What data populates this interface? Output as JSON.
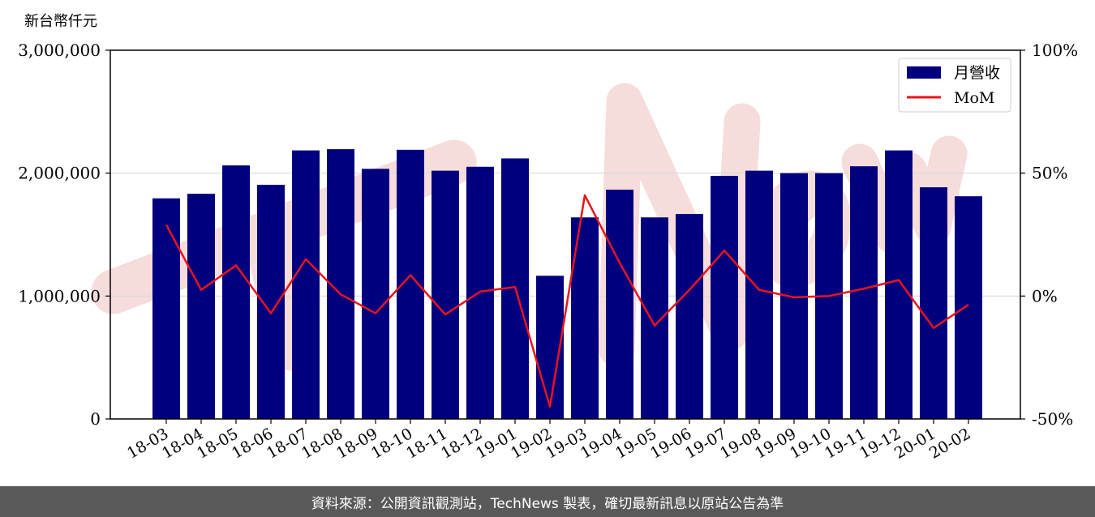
{
  "unit_label": "新台幣仟元",
  "footer_text": "資料來源：公開資訊觀測站，TechNews 製表，確切最新訊息以原站公告為準",
  "colors": {
    "bar": "#00007f",
    "line": "#e8141b",
    "grid": "#d9d9d9",
    "watermark": "#f7dcdc",
    "footer_bg": "#595959"
  },
  "chart_data": {
    "type": "bar",
    "categories": [
      "18-03",
      "18-04",
      "18-05",
      "18-06",
      "18-07",
      "18-08",
      "18-09",
      "18-10",
      "18-11",
      "18-12",
      "19-01",
      "19-02",
      "19-03",
      "19-04",
      "19-05",
      "19-06",
      "19-07",
      "19-08",
      "19-09",
      "19-10",
      "19-11",
      "19-12",
      "20-01",
      "20-02"
    ],
    "series": [
      {
        "name": "月營收",
        "axis": "left",
        "type": "bar",
        "values": [
          1795000,
          1832000,
          2063000,
          1905000,
          2185000,
          2195000,
          2035000,
          2190000,
          2020000,
          2052000,
          2120000,
          1165000,
          1640000,
          1865000,
          1640000,
          1668000,
          1978000,
          2020000,
          2000000,
          2000000,
          2056000,
          2185000,
          1885000,
          1812000
        ]
      },
      {
        "name": "MoM",
        "axis": "right",
        "type": "line",
        "values": [
          29,
          2.5,
          12.5,
          -7,
          15,
          0.7,
          -7,
          8.5,
          -7.5,
          1.8,
          3.7,
          -45,
          41,
          13.5,
          -12,
          2.5,
          18.5,
          2.5,
          -0.5,
          0,
          3,
          6.5,
          -13,
          -3.5
        ]
      }
    ],
    "y_left": {
      "lim": [
        0,
        3000000
      ],
      "ticks": [
        "0",
        "1,000,000",
        "2,000,000",
        "3,000,000"
      ]
    },
    "y_right": {
      "lim": [
        -50,
        100
      ],
      "ticks": [
        "-50%",
        "0%",
        "50%",
        "100%"
      ]
    },
    "grid": "horizontal",
    "legend_position": "top-right"
  }
}
